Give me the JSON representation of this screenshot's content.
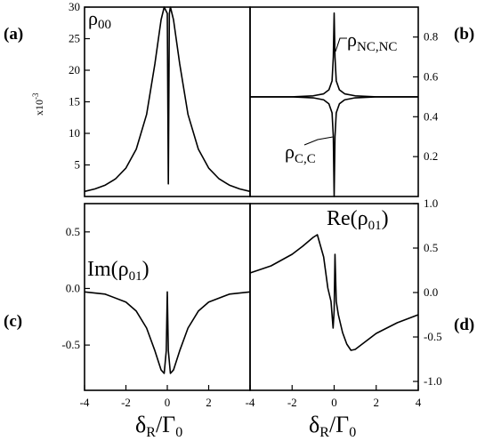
{
  "panel_tags": {
    "a": "(a)",
    "b": "(b)",
    "c": "(c)",
    "d": "(d)"
  },
  "curve_labels": {
    "a": {
      "base": "ρ",
      "sub": "00"
    },
    "b_nc": {
      "base": "ρ",
      "sub": "NC,NC"
    },
    "b_c": {
      "base": "ρ",
      "sub": "C,C"
    },
    "c": {
      "pre": "Im(",
      "base": "ρ",
      "sub": "01",
      "post": ")"
    },
    "d": {
      "pre": "Re(",
      "base": "ρ",
      "sub": "01",
      "post": ")"
    }
  },
  "y_multiplier": "x10",
  "y_multiplier_exp": "-3",
  "xlabel": {
    "base": "δ",
    "sub": "R",
    "mid": "/Γ",
    "sub2": "0"
  },
  "chart_data": [
    {
      "panel": "a",
      "type": "line",
      "xlim": [
        -4,
        4
      ],
      "ylim": [
        0,
        30
      ],
      "yticks": [
        5,
        10,
        15,
        20,
        25,
        30
      ],
      "ytick_labels": [
        "5",
        "10",
        "15",
        "20",
        "25",
        "30"
      ],
      "series": [
        {
          "x": [
            -4.0,
            -3.5,
            -3.0,
            -2.5,
            -2.0,
            -1.5,
            -1.0,
            -0.6,
            -0.3,
            -0.15,
            0.0,
            0.05,
            0.1,
            0.15,
            0.3,
            0.6,
            1.0,
            1.5,
            2.0,
            2.5,
            3.0,
            3.5,
            4.0
          ],
          "y": [
            0.8,
            1.2,
            1.8,
            2.8,
            4.5,
            7.5,
            13.0,
            21.0,
            28.0,
            30.0,
            29.0,
            2.0,
            29.0,
            30.0,
            28.0,
            21.0,
            13.0,
            7.5,
            4.5,
            2.8,
            1.8,
            1.2,
            0.8
          ]
        }
      ]
    },
    {
      "panel": "b",
      "type": "line",
      "xlim": [
        -4,
        4
      ],
      "ylim": [
        0,
        0.95
      ],
      "yticks": [
        0.2,
        0.4,
        0.6,
        0.8
      ],
      "ytick_labels": [
        "0.2",
        "0.4",
        "0.6",
        "0.8"
      ],
      "series": [
        {
          "x": [
            -4.0,
            -2.0,
            -1.0,
            -0.5,
            -0.25,
            -0.1,
            -0.04,
            0.0,
            0.04,
            0.1,
            0.25,
            0.5,
            1.0,
            2.0,
            4.0
          ],
          "y": [
            0.5,
            0.5,
            0.505,
            0.515,
            0.535,
            0.58,
            0.7,
            0.92,
            0.7,
            0.58,
            0.535,
            0.515,
            0.505,
            0.5,
            0.5
          ]
        },
        {
          "x": [
            -4.0,
            -2.0,
            -1.0,
            -0.5,
            -0.25,
            -0.1,
            -0.04,
            0.0,
            0.04,
            0.1,
            0.25,
            0.5,
            1.0,
            2.0,
            4.0
          ],
          "y": [
            0.5,
            0.5,
            0.495,
            0.485,
            0.465,
            0.42,
            0.3,
            0.0,
            0.3,
            0.42,
            0.465,
            0.485,
            0.495,
            0.5,
            0.5
          ]
        }
      ]
    },
    {
      "panel": "c",
      "type": "line",
      "xlim": [
        -4,
        4
      ],
      "ylim": [
        -0.9,
        0.75
      ],
      "xticks": [
        -4,
        -2,
        0,
        2,
        4
      ],
      "xtick_labels": [
        "-4",
        "-2",
        "0",
        "2",
        "4"
      ],
      "yticks": [
        -0.5,
        0.0,
        0.5
      ],
      "ytick_labels": [
        "-0.5",
        "0.0",
        "0.5"
      ],
      "series": [
        {
          "x": [
            -4.0,
            -3.0,
            -2.0,
            -1.5,
            -1.0,
            -0.6,
            -0.3,
            -0.15,
            -0.05,
            0.0,
            0.05,
            0.15,
            0.3,
            0.6,
            1.0,
            1.5,
            2.0,
            3.0,
            4.0
          ],
          "y": [
            -0.03,
            -0.05,
            -0.12,
            -0.2,
            -0.35,
            -0.55,
            -0.72,
            -0.75,
            -0.55,
            -0.03,
            -0.55,
            -0.75,
            -0.72,
            -0.55,
            -0.35,
            -0.2,
            -0.12,
            -0.05,
            -0.03
          ]
        }
      ]
    },
    {
      "panel": "d",
      "type": "line",
      "xlim": [
        -4,
        4
      ],
      "ylim": [
        -1.1,
        1.0
      ],
      "xticks": [
        -4,
        -2,
        0,
        2,
        4
      ],
      "xtick_labels": [
        "-4",
        "-2",
        "0",
        "2",
        "4"
      ],
      "yticks": [
        -1.0,
        -0.5,
        0.0,
        0.5,
        1.0
      ],
      "ytick_labels": [
        "-1.0",
        "-0.5",
        "0.0",
        "0.5",
        "1.0"
      ],
      "series": [
        {
          "x": [
            -4.0,
            -3.0,
            -2.0,
            -1.5,
            -1.0,
            -0.8,
            -0.5,
            -0.3,
            -0.15,
            -0.05,
            0.0,
            0.04,
            0.1,
            0.2,
            0.4,
            0.6,
            0.8,
            1.0,
            1.5,
            2.0,
            3.0,
            4.0
          ],
          "y": [
            0.22,
            0.3,
            0.43,
            0.52,
            0.62,
            0.65,
            0.4,
            0.05,
            -0.1,
            -0.4,
            -0.2,
            0.43,
            -0.1,
            -0.25,
            -0.45,
            -0.58,
            -0.65,
            -0.64,
            -0.55,
            -0.46,
            -0.34,
            -0.25
          ]
        }
      ]
    }
  ]
}
